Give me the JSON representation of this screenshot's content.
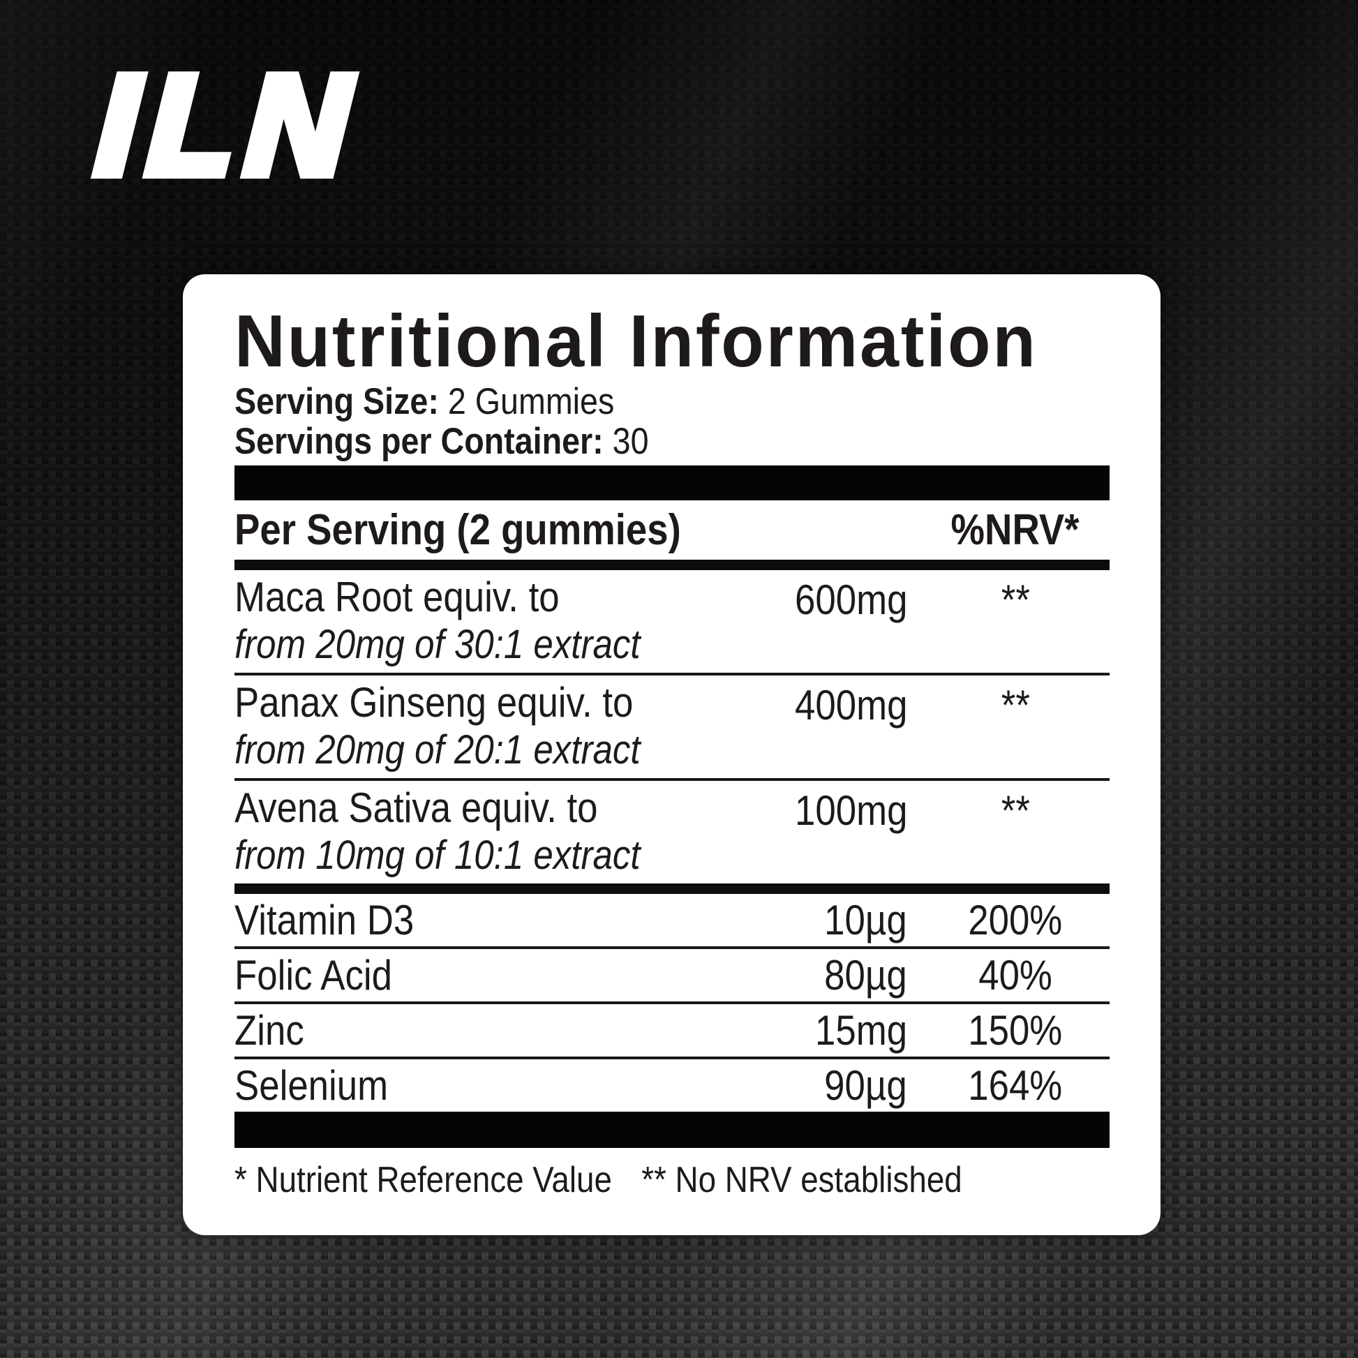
{
  "brand": {
    "logo_text": "ILN"
  },
  "panel": {
    "title": "Nutritional Information",
    "serving_size": {
      "label": "Serving Size:",
      "value": "2 Gummies"
    },
    "servings_per_container": {
      "label": "Servings per Container:",
      "value": "30"
    },
    "table": {
      "header": {
        "per_serving": "Per Serving (2 gummies)",
        "nrv": "%NRV*"
      },
      "herb_rows": [
        {
          "name": "Maca Root equiv. to",
          "detail": "from 20mg of 30:1 extract",
          "amount": "600mg",
          "nrv": "**"
        },
        {
          "name": "Panax Ginseng equiv. to",
          "detail": "from 20mg of 20:1 extract",
          "amount": "400mg",
          "nrv": "**"
        },
        {
          "name": "Avena Sativa equiv. to",
          "detail": "from 10mg of 10:1 extract",
          "amount": "100mg",
          "nrv": "**"
        }
      ],
      "micronutrient_rows": [
        {
          "name": "Vitamin D3",
          "amount": "10µg",
          "nrv": "200%"
        },
        {
          "name": "Folic Acid",
          "amount": "80µg",
          "nrv": "40%"
        },
        {
          "name": "Zinc",
          "amount": "15mg",
          "nrv": "150%"
        },
        {
          "name": "Selenium",
          "amount": "90µg",
          "nrv": "164%"
        }
      ]
    },
    "footnotes": {
      "nrv": "* Nutrient Reference Value",
      "no_nrv": "** No NRV established"
    }
  },
  "colors": {
    "card_bg": "#ffffff",
    "text": "#1e1a1b",
    "bar": "#050505",
    "logo": "#ffffff",
    "background_base": "#2e2e2e"
  }
}
